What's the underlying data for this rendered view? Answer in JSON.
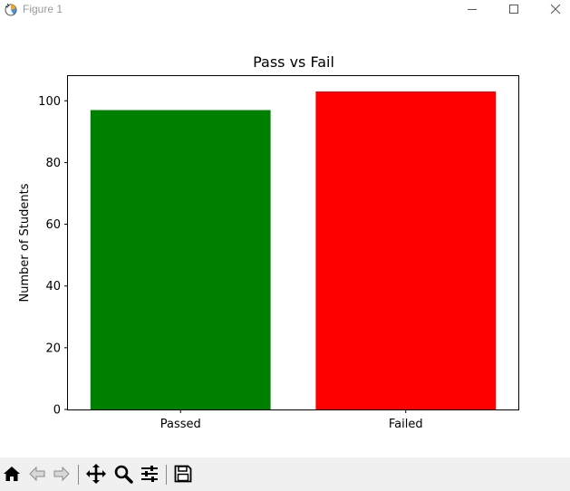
{
  "window": {
    "title": "Figure 1",
    "controls": [
      "minimize",
      "maximize",
      "close"
    ]
  },
  "colors": {
    "passed": "#008000",
    "failed": "#ff0000",
    "toolbar_bg": "#f0f0f0"
  },
  "chart_data": {
    "type": "bar",
    "title": "Pass vs Fail",
    "xlabel": "",
    "ylabel": "Number of Students",
    "categories": [
      "Passed",
      "Failed"
    ],
    "values": [
      97,
      103
    ],
    "bar_colors": [
      "#008000",
      "#ff0000"
    ],
    "ylim": [
      0,
      108
    ],
    "yticks": [
      0,
      20,
      40,
      60,
      80,
      100
    ],
    "grid": false,
    "legend": "none"
  },
  "toolbar": {
    "buttons": [
      {
        "name": "home-icon",
        "label": "Home"
      },
      {
        "name": "back-icon",
        "label": "Back"
      },
      {
        "name": "forward-icon",
        "label": "Forward"
      },
      {
        "name": "pan-icon",
        "label": "Pan"
      },
      {
        "name": "zoom-icon",
        "label": "Zoom"
      },
      {
        "name": "configure-subplots-icon",
        "label": "Configure subplots"
      },
      {
        "name": "save-icon",
        "label": "Save"
      }
    ]
  }
}
